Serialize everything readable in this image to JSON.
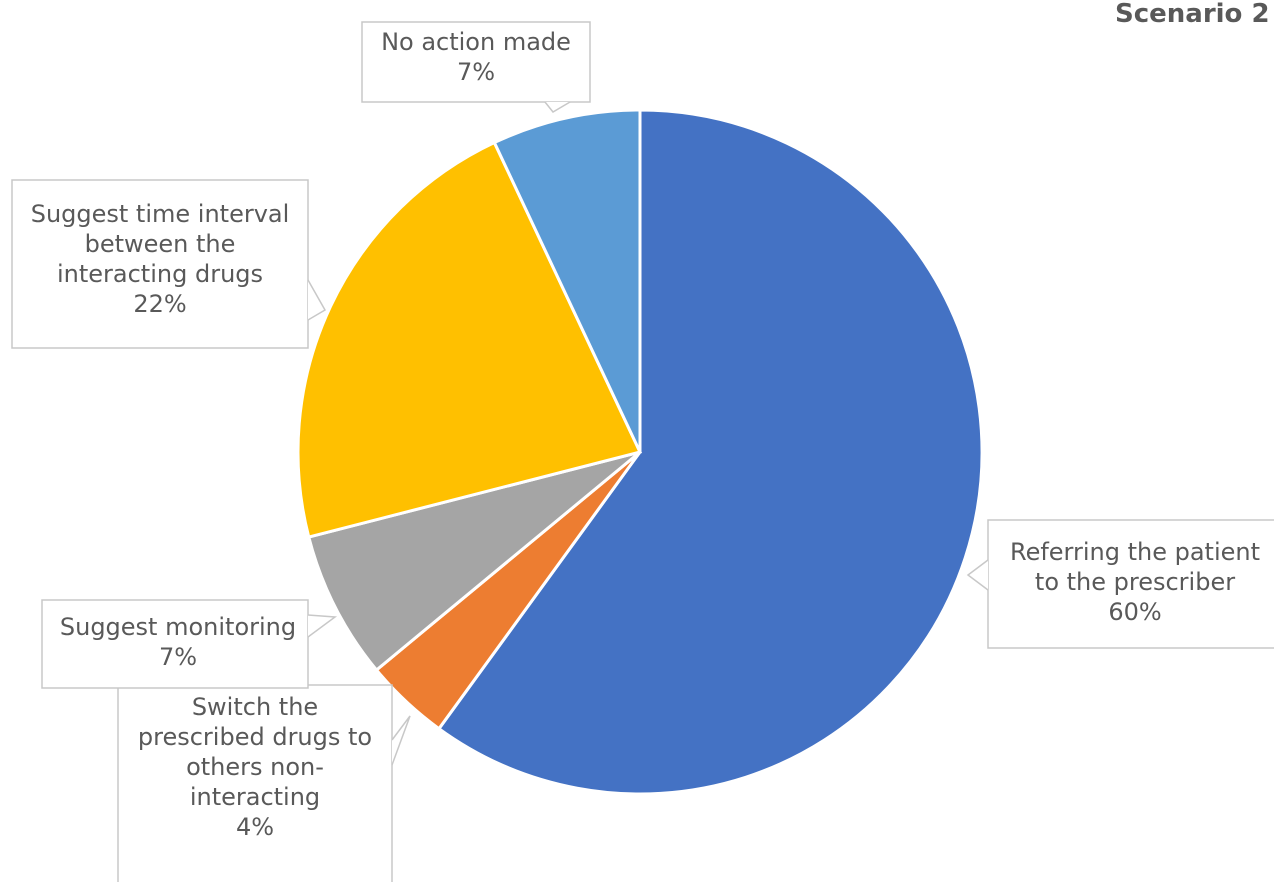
{
  "chart_data": {
    "type": "pie",
    "title": "Scenario 2",
    "start_angle_deg": 0,
    "direction": "clockwise",
    "slices": [
      {
        "label_lines": [
          "Referring the patient",
          "to the prescriber"
        ],
        "value": 60,
        "value_label": "60%",
        "color": "#4472C4"
      },
      {
        "label_lines": [
          "Switch  the",
          "prescribed drugs to",
          "others non-",
          "interacting"
        ],
        "value": 4,
        "value_label": "4%",
        "color": "#ED7D31"
      },
      {
        "label_lines": [
          "Suggest monitoring"
        ],
        "value": 7,
        "value_label": "7%",
        "color": "#A5A5A5"
      },
      {
        "label_lines": [
          "Suggest time interval",
          "between the",
          "interacting drugs"
        ],
        "value": 22,
        "value_label": "22%",
        "color": "#FFC000"
      },
      {
        "label_lines": [
          "No action made"
        ],
        "value": 7,
        "value_label": "7%",
        "color": "#5B9BD5"
      }
    ]
  }
}
